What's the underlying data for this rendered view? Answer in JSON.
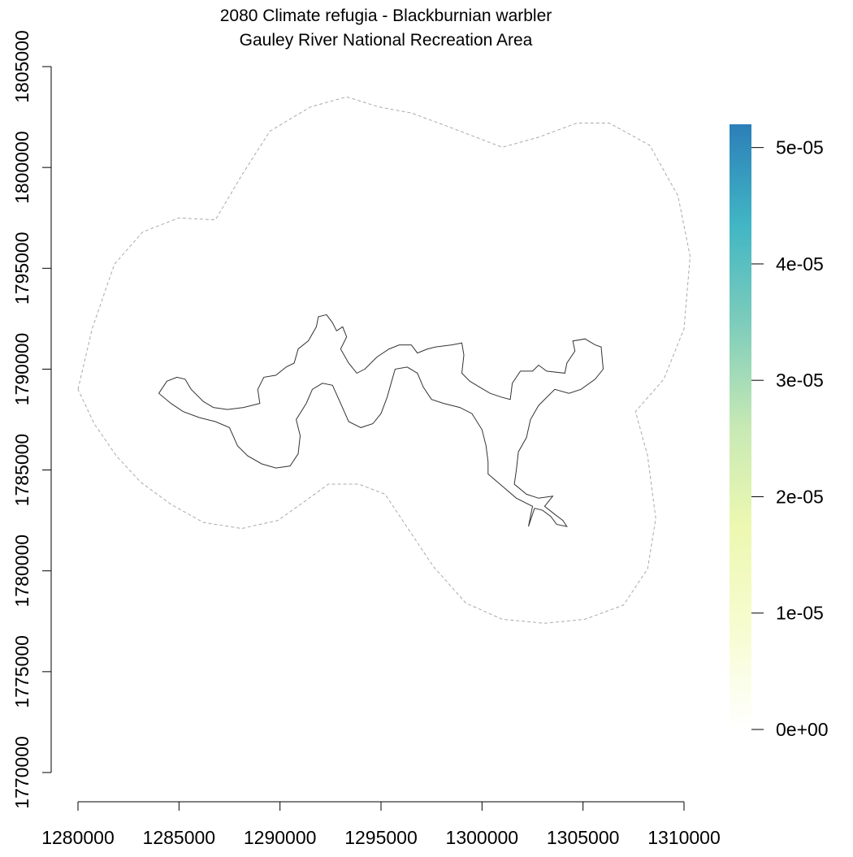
{
  "title": {
    "line1": "2080 Climate refugia - Blackburnian warbler",
    "line2": "Gauley River National Recreation Area"
  },
  "colors": {
    "axis": "#000000",
    "park_boundary": "#333333",
    "buffer_boundary": "#aaaaaa",
    "legend_gradient": [
      "#ffffff",
      "#f7fcd0",
      "#edf8b1",
      "#c7e9b4",
      "#7fcdbb",
      "#41b6c4",
      "#2c7fb8"
    ]
  },
  "chart_data": {
    "type": "map",
    "xlim": [
      1280000,
      1310000
    ],
    "ylim": [
      1770000,
      1805000
    ],
    "x_ticks": [
      1280000,
      1285000,
      1290000,
      1295000,
      1300000,
      1305000,
      1310000
    ],
    "x_tick_labels": [
      "1280000",
      "1285000",
      "1290000",
      "1295000",
      "1300000",
      "1305000",
      "1310000"
    ],
    "y_ticks": [
      1770000,
      1775000,
      1780000,
      1785000,
      1790000,
      1795000,
      1800000,
      1805000
    ],
    "y_tick_labels": [
      "1770000",
      "1775000",
      "1780000",
      "1785000",
      "1790000",
      "1795000",
      "1800000",
      "1805000"
    ],
    "legend": {
      "range": [
        0,
        5.2e-05
      ],
      "ticks": [
        0,
        1e-05,
        2e-05,
        3e-05,
        4e-05,
        5e-05
      ],
      "tick_labels": [
        "0e+00",
        "1e-05",
        "2e-05",
        "3e-05",
        "4e-05",
        "5e-05"
      ],
      "placement": "right"
    },
    "buffer_outline": [
      [
        1280000,
        1789000
      ],
      [
        1280700,
        1792000
      ],
      [
        1281800,
        1795200
      ],
      [
        1283200,
        1796800
      ],
      [
        1285000,
        1797500
      ],
      [
        1286800,
        1797400
      ],
      [
        1288100,
        1799600
      ],
      [
        1289500,
        1801800
      ],
      [
        1291500,
        1803000
      ],
      [
        1293300,
        1803500
      ],
      [
        1294900,
        1803000
      ],
      [
        1296500,
        1802700
      ],
      [
        1298400,
        1802000
      ],
      [
        1301000,
        1801000
      ],
      [
        1302800,
        1801500
      ],
      [
        1304700,
        1802200
      ],
      [
        1306300,
        1802200
      ],
      [
        1308300,
        1801100
      ],
      [
        1309700,
        1798600
      ],
      [
        1310300,
        1795600
      ],
      [
        1310000,
        1792000
      ],
      [
        1309000,
        1789500
      ],
      [
        1307600,
        1787900
      ],
      [
        1308200,
        1785700
      ],
      [
        1308600,
        1782600
      ],
      [
        1308200,
        1780100
      ],
      [
        1307000,
        1778300
      ],
      [
        1305100,
        1777600
      ],
      [
        1303100,
        1777400
      ],
      [
        1301000,
        1777600
      ],
      [
        1299200,
        1778400
      ],
      [
        1297600,
        1780200
      ],
      [
        1296200,
        1782300
      ],
      [
        1295200,
        1783800
      ],
      [
        1293900,
        1784300
      ],
      [
        1292400,
        1784300
      ],
      [
        1291300,
        1783500
      ],
      [
        1289900,
        1782500
      ],
      [
        1288100,
        1782100
      ],
      [
        1286200,
        1782400
      ],
      [
        1284600,
        1783300
      ],
      [
        1283100,
        1784400
      ],
      [
        1281900,
        1785700
      ],
      [
        1280800,
        1787300
      ],
      [
        1280000,
        1789000
      ]
    ],
    "park_outline": [
      [
        1284000,
        1788800
      ],
      [
        1284400,
        1789400
      ],
      [
        1284900,
        1789600
      ],
      [
        1285300,
        1789500
      ],
      [
        1285600,
        1789000
      ],
      [
        1286200,
        1788400
      ],
      [
        1286700,
        1788100
      ],
      [
        1287400,
        1788000
      ],
      [
        1288200,
        1788100
      ],
      [
        1289000,
        1788300
      ],
      [
        1288900,
        1789000
      ],
      [
        1289200,
        1789600
      ],
      [
        1289800,
        1789700
      ],
      [
        1290300,
        1790100
      ],
      [
        1290700,
        1790300
      ],
      [
        1290900,
        1791000
      ],
      [
        1291400,
        1791400
      ],
      [
        1291800,
        1792100
      ],
      [
        1291900,
        1792600
      ],
      [
        1292300,
        1792700
      ],
      [
        1292600,
        1792300
      ],
      [
        1292800,
        1791900
      ],
      [
        1293100,
        1792100
      ],
      [
        1293300,
        1791600
      ],
      [
        1293000,
        1791000
      ],
      [
        1293400,
        1790300
      ],
      [
        1293800,
        1789800
      ],
      [
        1294200,
        1790000
      ],
      [
        1294800,
        1790600
      ],
      [
        1295400,
        1791000
      ],
      [
        1295900,
        1791200
      ],
      [
        1296500,
        1791200
      ],
      [
        1296800,
        1790800
      ],
      [
        1297300,
        1791000
      ],
      [
        1297700,
        1791100
      ],
      [
        1298500,
        1791200
      ],
      [
        1299000,
        1791300
      ],
      [
        1299100,
        1790700
      ],
      [
        1299000,
        1789800
      ],
      [
        1299400,
        1789400
      ],
      [
        1299900,
        1789100
      ],
      [
        1300400,
        1788800
      ],
      [
        1301000,
        1788600
      ],
      [
        1301400,
        1788500
      ],
      [
        1301500,
        1789300
      ],
      [
        1301900,
        1789900
      ],
      [
        1302500,
        1789900
      ],
      [
        1302800,
        1790200
      ],
      [
        1303200,
        1789900
      ],
      [
        1304100,
        1789800
      ],
      [
        1304200,
        1790300
      ],
      [
        1304600,
        1790900
      ],
      [
        1304500,
        1791400
      ],
      [
        1305100,
        1791500
      ],
      [
        1305600,
        1791200
      ],
      [
        1305900,
        1791100
      ],
      [
        1306000,
        1790000
      ],
      [
        1305600,
        1789500
      ],
      [
        1304900,
        1789000
      ],
      [
        1304300,
        1788800
      ],
      [
        1303600,
        1789000
      ],
      [
        1302800,
        1788200
      ],
      [
        1302400,
        1787500
      ],
      [
        1302200,
        1786600
      ],
      [
        1301800,
        1785900
      ],
      [
        1301700,
        1785000
      ],
      [
        1301600,
        1784300
      ],
      [
        1302200,
        1783800
      ],
      [
        1302800,
        1783600
      ],
      [
        1303500,
        1783700
      ],
      [
        1303100,
        1783200
      ],
      [
        1303600,
        1782800
      ],
      [
        1304000,
        1782500
      ],
      [
        1304200,
        1782200
      ],
      [
        1303700,
        1782300
      ],
      [
        1303400,
        1782700
      ],
      [
        1303000,
        1783000
      ],
      [
        1302600,
        1783100
      ],
      [
        1302300,
        1782200
      ],
      [
        1302500,
        1783200
      ],
      [
        1301700,
        1783600
      ],
      [
        1301000,
        1784200
      ],
      [
        1300300,
        1784800
      ],
      [
        1300300,
        1785400
      ],
      [
        1300200,
        1786200
      ],
      [
        1300000,
        1787000
      ],
      [
        1299500,
        1787800
      ],
      [
        1298900,
        1788100
      ],
      [
        1298100,
        1788300
      ],
      [
        1297500,
        1788500
      ],
      [
        1297100,
        1789100
      ],
      [
        1296800,
        1789800
      ],
      [
        1296300,
        1790100
      ],
      [
        1295700,
        1790000
      ],
      [
        1295500,
        1789300
      ],
      [
        1295300,
        1788600
      ],
      [
        1295000,
        1787800
      ],
      [
        1294600,
        1787300
      ],
      [
        1294000,
        1787100
      ],
      [
        1293400,
        1787400
      ],
      [
        1293000,
        1788300
      ],
      [
        1292600,
        1789200
      ],
      [
        1292100,
        1789300
      ],
      [
        1291600,
        1789000
      ],
      [
        1291300,
        1788300
      ],
      [
        1290800,
        1787500
      ],
      [
        1291000,
        1786700
      ],
      [
        1290900,
        1785800
      ],
      [
        1290500,
        1785200
      ],
      [
        1289800,
        1785100
      ],
      [
        1289100,
        1785300
      ],
      [
        1288400,
        1785700
      ],
      [
        1287900,
        1786200
      ],
      [
        1287500,
        1787100
      ],
      [
        1286800,
        1787400
      ],
      [
        1286000,
        1787600
      ],
      [
        1285200,
        1787900
      ],
      [
        1284600,
        1788300
      ],
      [
        1284000,
        1788800
      ]
    ]
  }
}
